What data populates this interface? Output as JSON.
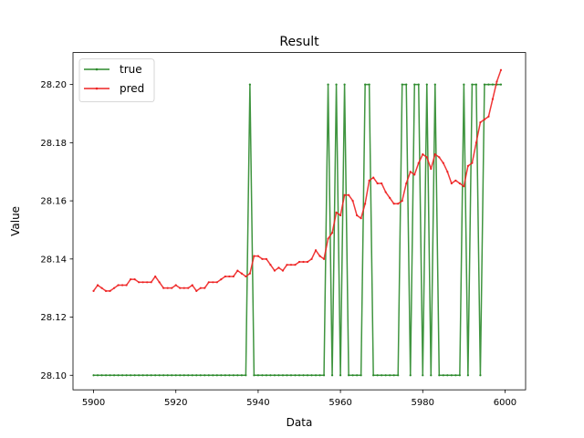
{
  "chart_data": {
    "type": "line",
    "title": "Result",
    "xlabel": "Data",
    "ylabel": "Value",
    "xlim": [
      5895,
      6005
    ],
    "ylim": [
      28.095,
      28.211
    ],
    "xticks": [
      5900,
      5920,
      5940,
      5960,
      5980,
      6000
    ],
    "yticks": [
      28.1,
      28.12,
      28.14,
      28.16,
      28.18,
      28.2
    ],
    "xtick_labels": [
      "5900",
      "5920",
      "5940",
      "5960",
      "5980",
      "6000"
    ],
    "ytick_labels": [
      "28.10",
      "28.12",
      "28.14",
      "28.16",
      "28.18",
      "28.20"
    ],
    "grid": false,
    "legend_position": "top-left",
    "x": [
      5900,
      5901,
      5902,
      5903,
      5904,
      5905,
      5906,
      5907,
      5908,
      5909,
      5910,
      5911,
      5912,
      5913,
      5914,
      5915,
      5916,
      5917,
      5918,
      5919,
      5920,
      5921,
      5922,
      5923,
      5924,
      5925,
      5926,
      5927,
      5928,
      5929,
      5930,
      5931,
      5932,
      5933,
      5934,
      5935,
      5936,
      5937,
      5938,
      5939,
      5940,
      5941,
      5942,
      5943,
      5944,
      5945,
      5946,
      5947,
      5948,
      5949,
      5950,
      5951,
      5952,
      5953,
      5954,
      5955,
      5956,
      5957,
      5958,
      5959,
      5960,
      5961,
      5962,
      5963,
      5964,
      5965,
      5966,
      5967,
      5968,
      5969,
      5970,
      5971,
      5972,
      5973,
      5974,
      5975,
      5976,
      5977,
      5978,
      5979,
      5980,
      5981,
      5982,
      5983,
      5984,
      5985,
      5986,
      5987,
      5988,
      5989,
      5990,
      5991,
      5992,
      5993,
      5994,
      5995,
      5996,
      5997,
      5998,
      5999
    ],
    "series": [
      {
        "name": "true",
        "color": "#2b8a2b",
        "values": [
          28.1,
          28.1,
          28.1,
          28.1,
          28.1,
          28.1,
          28.1,
          28.1,
          28.1,
          28.1,
          28.1,
          28.1,
          28.1,
          28.1,
          28.1,
          28.1,
          28.1,
          28.1,
          28.1,
          28.1,
          28.1,
          28.1,
          28.1,
          28.1,
          28.1,
          28.1,
          28.1,
          28.1,
          28.1,
          28.1,
          28.1,
          28.1,
          28.1,
          28.1,
          28.1,
          28.1,
          28.1,
          28.1,
          28.2,
          28.1,
          28.1,
          28.1,
          28.1,
          28.1,
          28.1,
          28.1,
          28.1,
          28.1,
          28.1,
          28.1,
          28.1,
          28.1,
          28.1,
          28.1,
          28.1,
          28.1,
          28.1,
          28.2,
          28.1,
          28.2,
          28.1,
          28.2,
          28.1,
          28.1,
          28.1,
          28.1,
          28.2,
          28.2,
          28.1,
          28.1,
          28.1,
          28.1,
          28.1,
          28.1,
          28.1,
          28.2,
          28.2,
          28.1,
          28.2,
          28.2,
          28.1,
          28.2,
          28.1,
          28.2,
          28.1,
          28.1,
          28.1,
          28.1,
          28.1,
          28.1,
          28.2,
          28.1,
          28.2,
          28.2,
          28.1,
          28.2,
          28.2,
          28.2,
          28.2,
          28.2
        ]
      },
      {
        "name": "pred",
        "color": "#ee2222",
        "values": [
          28.129,
          28.131,
          28.13,
          28.129,
          28.129,
          28.13,
          28.131,
          28.131,
          28.131,
          28.133,
          28.133,
          28.132,
          28.132,
          28.132,
          28.132,
          28.134,
          28.132,
          28.13,
          28.13,
          28.13,
          28.131,
          28.13,
          28.13,
          28.13,
          28.131,
          28.129,
          28.13,
          28.13,
          28.132,
          28.132,
          28.132,
          28.133,
          28.134,
          28.134,
          28.134,
          28.136,
          28.135,
          28.134,
          28.135,
          28.141,
          28.141,
          28.14,
          28.14,
          28.138,
          28.136,
          28.137,
          28.136,
          28.138,
          28.138,
          28.138,
          28.139,
          28.139,
          28.139,
          28.14,
          28.143,
          28.141,
          28.14,
          28.147,
          28.149,
          28.156,
          28.155,
          28.162,
          28.162,
          28.16,
          28.155,
          28.154,
          28.159,
          28.167,
          28.168,
          28.166,
          28.166,
          28.163,
          28.161,
          28.159,
          28.159,
          28.16,
          28.166,
          28.17,
          28.169,
          28.173,
          28.176,
          28.175,
          28.171,
          28.176,
          28.175,
          28.173,
          28.17,
          28.166,
          28.167,
          28.166,
          28.165,
          28.172,
          28.173,
          28.18,
          28.187,
          28.188,
          28.189,
          28.195,
          28.201,
          28.205
        ]
      }
    ]
  }
}
